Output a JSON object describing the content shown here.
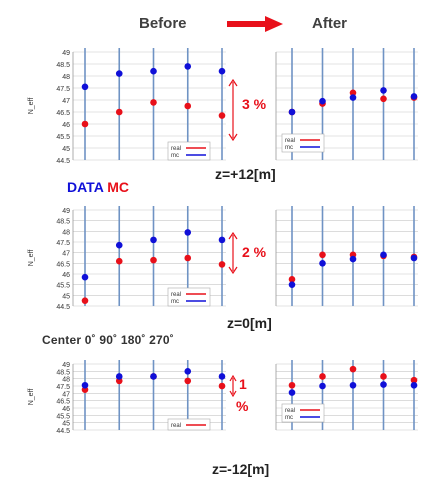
{
  "header": {
    "before": "Before",
    "after": "After"
  },
  "colors": {
    "real": "#e8101a",
    "mc": "#1010d8",
    "arrow": "#e8101a",
    "vline": "#6f93c4",
    "grid": "#c8c8c8"
  },
  "legend_top": {
    "data": "DATA",
    "mc": "MC"
  },
  "center_row": "Center 0˚ 90˚ 180˚ 270˚",
  "chart_data": [
    {
      "type": "scatter",
      "id": "before-z12",
      "ylabel": "N_eff",
      "ylim": [
        44.5,
        49
      ],
      "yticks": [
        "44.5",
        "45",
        "45.5",
        "46",
        "46.5",
        "47",
        "47.5",
        "48",
        "48.5",
        "49"
      ],
      "series": [
        {
          "name": "real",
          "color": "#e8101a",
          "y": [
            46.0,
            46.5,
            46.9,
            46.75,
            46.35
          ]
        },
        {
          "name": "mc",
          "color": "#1010d8",
          "y": [
            47.55,
            48.1,
            48.2,
            48.4,
            48.2
          ]
        }
      ],
      "legend": {
        "labels": [
          "real",
          "mc"
        ]
      }
    },
    {
      "type": "scatter",
      "id": "after-z12",
      "ylim": [
        44.5,
        49
      ],
      "series": [
        {
          "name": "real",
          "color": "#e8101a",
          "y": [
            46.5,
            46.85,
            47.3,
            47.05,
            47.1
          ]
        },
        {
          "name": "mc",
          "color": "#1010d8",
          "y": [
            46.5,
            46.95,
            47.1,
            47.4,
            47.15
          ]
        }
      ],
      "legend": {
        "labels": [
          "real",
          "mc"
        ]
      }
    },
    {
      "type": "scatter",
      "id": "before-z0",
      "ylabel": "N_eff",
      "ylim": [
        44.5,
        49
      ],
      "yticks": [
        "44.5",
        "45",
        "45.5",
        "46",
        "46.5",
        "47",
        "47.5",
        "48",
        "48.5",
        "49"
      ],
      "series": [
        {
          "name": "real",
          "color": "#e8101a",
          "y": [
            44.75,
            46.6,
            46.65,
            46.75,
            46.45
          ]
        },
        {
          "name": "mc",
          "color": "#1010d8",
          "y": [
            45.85,
            47.35,
            47.6,
            47.95,
            47.6
          ]
        }
      ],
      "legend": {
        "labels": [
          "real",
          "mc"
        ]
      }
    },
    {
      "type": "scatter",
      "id": "after-z0",
      "ylim": [
        44.5,
        49
      ],
      "series": [
        {
          "name": "real",
          "color": "#e8101a",
          "y": [
            45.75,
            46.9,
            46.9,
            46.85,
            46.8
          ]
        },
        {
          "name": "mc",
          "color": "#1010d8",
          "y": [
            45.5,
            46.5,
            46.7,
            46.9,
            46.75
          ]
        }
      ]
    },
    {
      "type": "scatter",
      "id": "before-zm12",
      "ylabel": "N_eff",
      "ylim": [
        44.5,
        49
      ],
      "yticks": [
        "44.5",
        "45",
        "45.5",
        "46",
        "46.5",
        "47",
        "47.5",
        "48",
        "48.5",
        "49"
      ],
      "series": [
        {
          "name": "real",
          "color": "#e8101a",
          "y": [
            47.25,
            47.85,
            48.15,
            47.85,
            47.5
          ]
        },
        {
          "name": "mc",
          "color": "#1010d8",
          "y": [
            47.55,
            48.15,
            48.15,
            48.5,
            48.15
          ]
        }
      ],
      "legend": {
        "labels": [
          "real"
        ]
      }
    },
    {
      "type": "scatter",
      "id": "after-zm12",
      "ylim": [
        44.5,
        49
      ],
      "series": [
        {
          "name": "real",
          "color": "#e8101a",
          "y": [
            47.55,
            48.15,
            48.65,
            48.15,
            47.9
          ]
        },
        {
          "name": "mc",
          "color": "#1010d8",
          "y": [
            47.05,
            47.5,
            47.55,
            47.6,
            47.55
          ]
        }
      ],
      "legend": {
        "labels": [
          "real",
          "mc"
        ]
      }
    }
  ],
  "annotations": {
    "z12": {
      "pct": "3 %",
      "z": "z=+12[m]"
    },
    "z0": {
      "pct": "2 %",
      "z": "z=0[m]"
    },
    "zm12": {
      "pct_top": "1",
      "pct_bottom": "%",
      "z": "z=-12[m]"
    }
  }
}
